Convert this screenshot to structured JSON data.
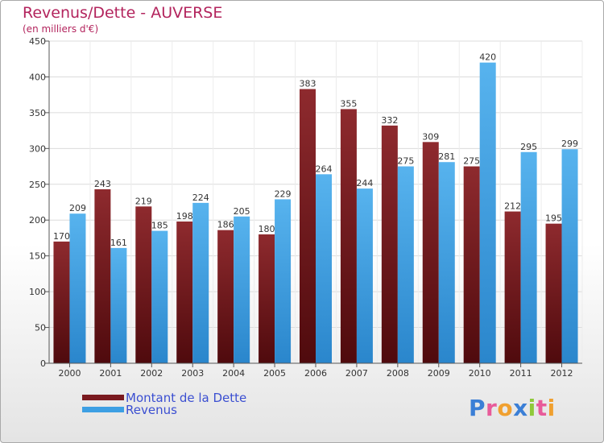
{
  "chart_data": {
    "type": "bar",
    "title": "Revenus/Dette - AUVERSE",
    "subtitle": "(en milliers d'€)",
    "categories": [
      "2000",
      "2001",
      "2002",
      "2003",
      "2004",
      "2005",
      "2006",
      "2007",
      "2008",
      "2009",
      "2010",
      "2011",
      "2012"
    ],
    "series": [
      {
        "name": "Montant de la Dette",
        "color": "#7a1a1f",
        "values": [
          170,
          243,
          219,
          198,
          186,
          180,
          383,
          355,
          332,
          309,
          275,
          212,
          195
        ]
      },
      {
        "name": "Revenus",
        "color": "#3d9fe3",
        "values": [
          209,
          161,
          185,
          224,
          205,
          229,
          264,
          244,
          275,
          281,
          420,
          295,
          299
        ]
      }
    ],
    "ylim": [
      0,
      450
    ],
    "yticks": [
      0,
      50,
      100,
      150,
      200,
      250,
      300,
      350,
      400,
      450
    ],
    "grid": true,
    "legend_position": "bottom-left"
  },
  "logo": {
    "text": "Proxiti"
  }
}
